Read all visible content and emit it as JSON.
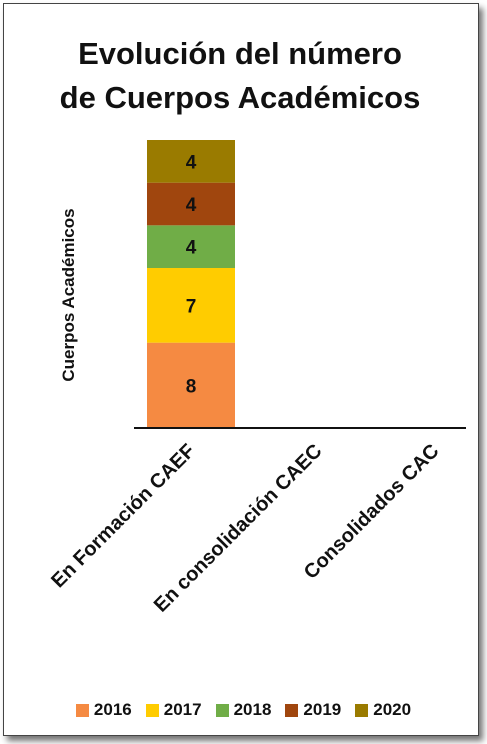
{
  "chart_data": {
    "type": "bar",
    "stacked": true,
    "title_lines": [
      "Evolución del número",
      "de Cuerpos Académicos"
    ],
    "ylabel": "Cuerpos Académicos",
    "xlabel": "",
    "categories": [
      "En Formación CAEF",
      "En consolidación CAEC",
      "Consolidados CAC"
    ],
    "series": [
      {
        "name": "2016",
        "color": "#f58a42",
        "values": [
          8,
          0,
          0
        ]
      },
      {
        "name": "2017",
        "color": "#ffcc00",
        "values": [
          7,
          0,
          0
        ]
      },
      {
        "name": "2018",
        "color": "#70ad47",
        "values": [
          4,
          0,
          0
        ]
      },
      {
        "name": "2019",
        "color": "#a0460e",
        "values": [
          4,
          0,
          0
        ]
      },
      {
        "name": "2020",
        "color": "#9a7b00",
        "values": [
          4,
          0,
          0
        ]
      }
    ],
    "ylim": [
      0,
      27
    ],
    "legend_position": "bottom",
    "grid": false,
    "y_axis_ticks": "hidden"
  }
}
